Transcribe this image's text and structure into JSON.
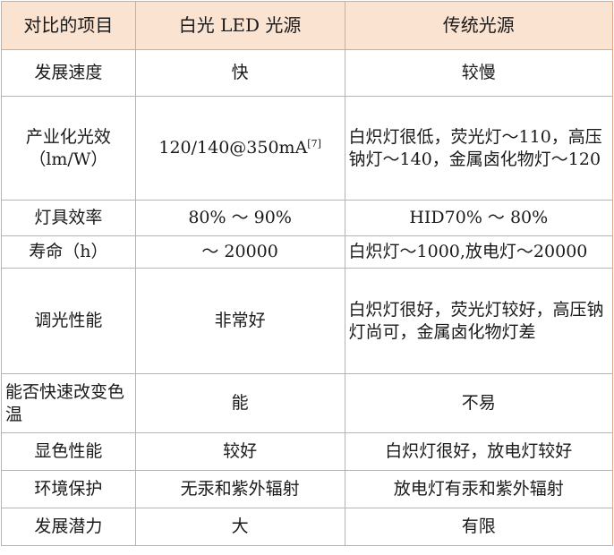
{
  "table": {
    "headers": [
      "对比的项目",
      "白光 LED 光源",
      "传统光源"
    ],
    "rows": [
      {
        "item": "发展速度",
        "led": "快",
        "led_sup": "",
        "trad": "较慢"
      },
      {
        "item": "产业化光效（lm/W）",
        "led": "120/140@350mA",
        "led_sup": "[7]",
        "trad": "白炽灯很低，荧光灯～110，高压钠灯～140，金属卤化物灯～120"
      },
      {
        "item": "灯具效率",
        "led": "80% ～ 90%",
        "led_sup": "",
        "trad": "HID70% ～ 80%"
      },
      {
        "item": "寿命（h）",
        "led": "～ 20000",
        "led_sup": "",
        "trad": "白炽灯～1000,放电灯～20000"
      },
      {
        "item": "调光性能",
        "led": "非常好",
        "led_sup": "",
        "trad": "白炽灯很好，荧光灯较好，高压钠灯尚可，金属卤化物灯差"
      },
      {
        "item": "能否快速改变色温",
        "led": "能",
        "led_sup": "",
        "trad": "不易"
      },
      {
        "item": "显色性能",
        "led": "较好",
        "led_sup": "",
        "trad": "白炽灯很好，放电灯较好"
      },
      {
        "item": "环境保护",
        "led": "无汞和紫外辐射",
        "led_sup": "",
        "trad": "放电灯有汞和紫外辐射"
      },
      {
        "item": "发展潜力",
        "led": "大",
        "led_sup": "",
        "trad": "有限"
      }
    ]
  }
}
